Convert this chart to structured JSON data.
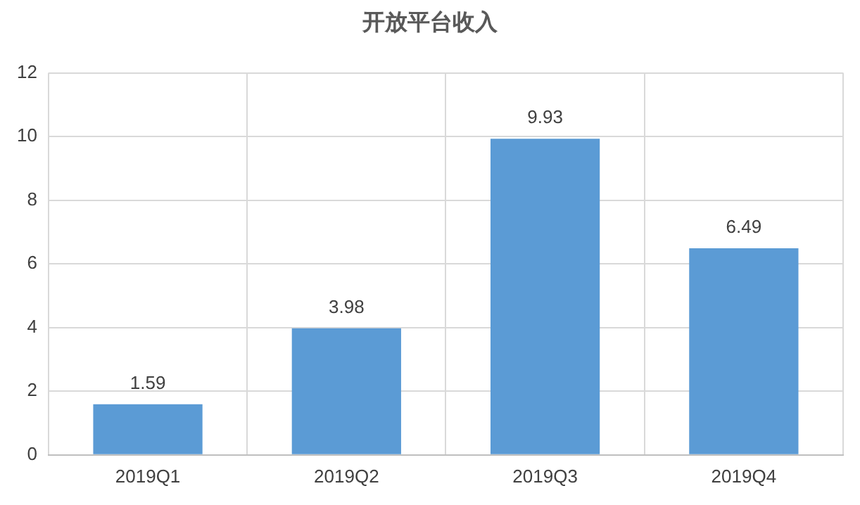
{
  "chart_data": {
    "type": "bar",
    "title": "开放平台收入",
    "categories": [
      "2019Q1",
      "2019Q2",
      "2019Q3",
      "2019Q4"
    ],
    "values": [
      1.59,
      3.98,
      9.93,
      6.49
    ],
    "color": "#5b9bd5",
    "ylim": [
      0,
      12
    ],
    "yticks": [
      0,
      2,
      4,
      6,
      8,
      10,
      12
    ],
    "grid": true,
    "data_labels": true
  }
}
